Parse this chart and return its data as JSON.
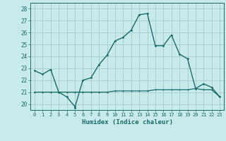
{
  "xlabel": "Humidex (Indice chaleur)",
  "background_color": "#c8eaea",
  "grid_color": "#aacfcf",
  "line_color": "#1a6b6b",
  "xlim": [
    -0.5,
    23.5
  ],
  "ylim": [
    19.5,
    28.5
  ],
  "yticks": [
    20,
    21,
    22,
    23,
    24,
    25,
    26,
    27,
    28
  ],
  "xtick_labels": [
    "0",
    "1",
    "2",
    "3",
    "4",
    "5",
    "6",
    "7",
    "8",
    "9",
    "10",
    "11",
    "12",
    "13",
    "14",
    "15",
    "16",
    "17",
    "18",
    "19",
    "20",
    "21",
    "22",
    "23"
  ],
  "curve1_x": [
    0,
    1,
    2,
    3,
    4,
    5,
    5,
    6,
    7,
    8,
    9,
    10,
    11,
    12,
    13,
    14,
    15,
    16,
    17,
    18,
    19,
    20,
    21,
    22,
    23
  ],
  "curve1_y": [
    22.8,
    22.5,
    22.9,
    21.0,
    20.6,
    19.8,
    19.7,
    22.0,
    22.2,
    23.3,
    24.1,
    25.3,
    25.6,
    26.2,
    27.5,
    27.6,
    24.9,
    24.9,
    25.8,
    24.2,
    23.8,
    21.3,
    21.7,
    21.4,
    20.6
  ],
  "curve2_x": [
    0,
    1,
    2,
    3,
    4,
    5,
    6,
    7,
    8,
    9,
    10,
    11,
    12,
    13,
    14,
    15,
    16,
    17,
    18,
    19,
    20,
    21,
    22,
    23
  ],
  "curve2_y": [
    21.0,
    21.0,
    21.0,
    21.0,
    21.0,
    21.0,
    21.0,
    21.0,
    21.0,
    21.0,
    21.1,
    21.1,
    21.1,
    21.1,
    21.1,
    21.2,
    21.2,
    21.2,
    21.2,
    21.2,
    21.3,
    21.2,
    21.2,
    20.6
  ]
}
